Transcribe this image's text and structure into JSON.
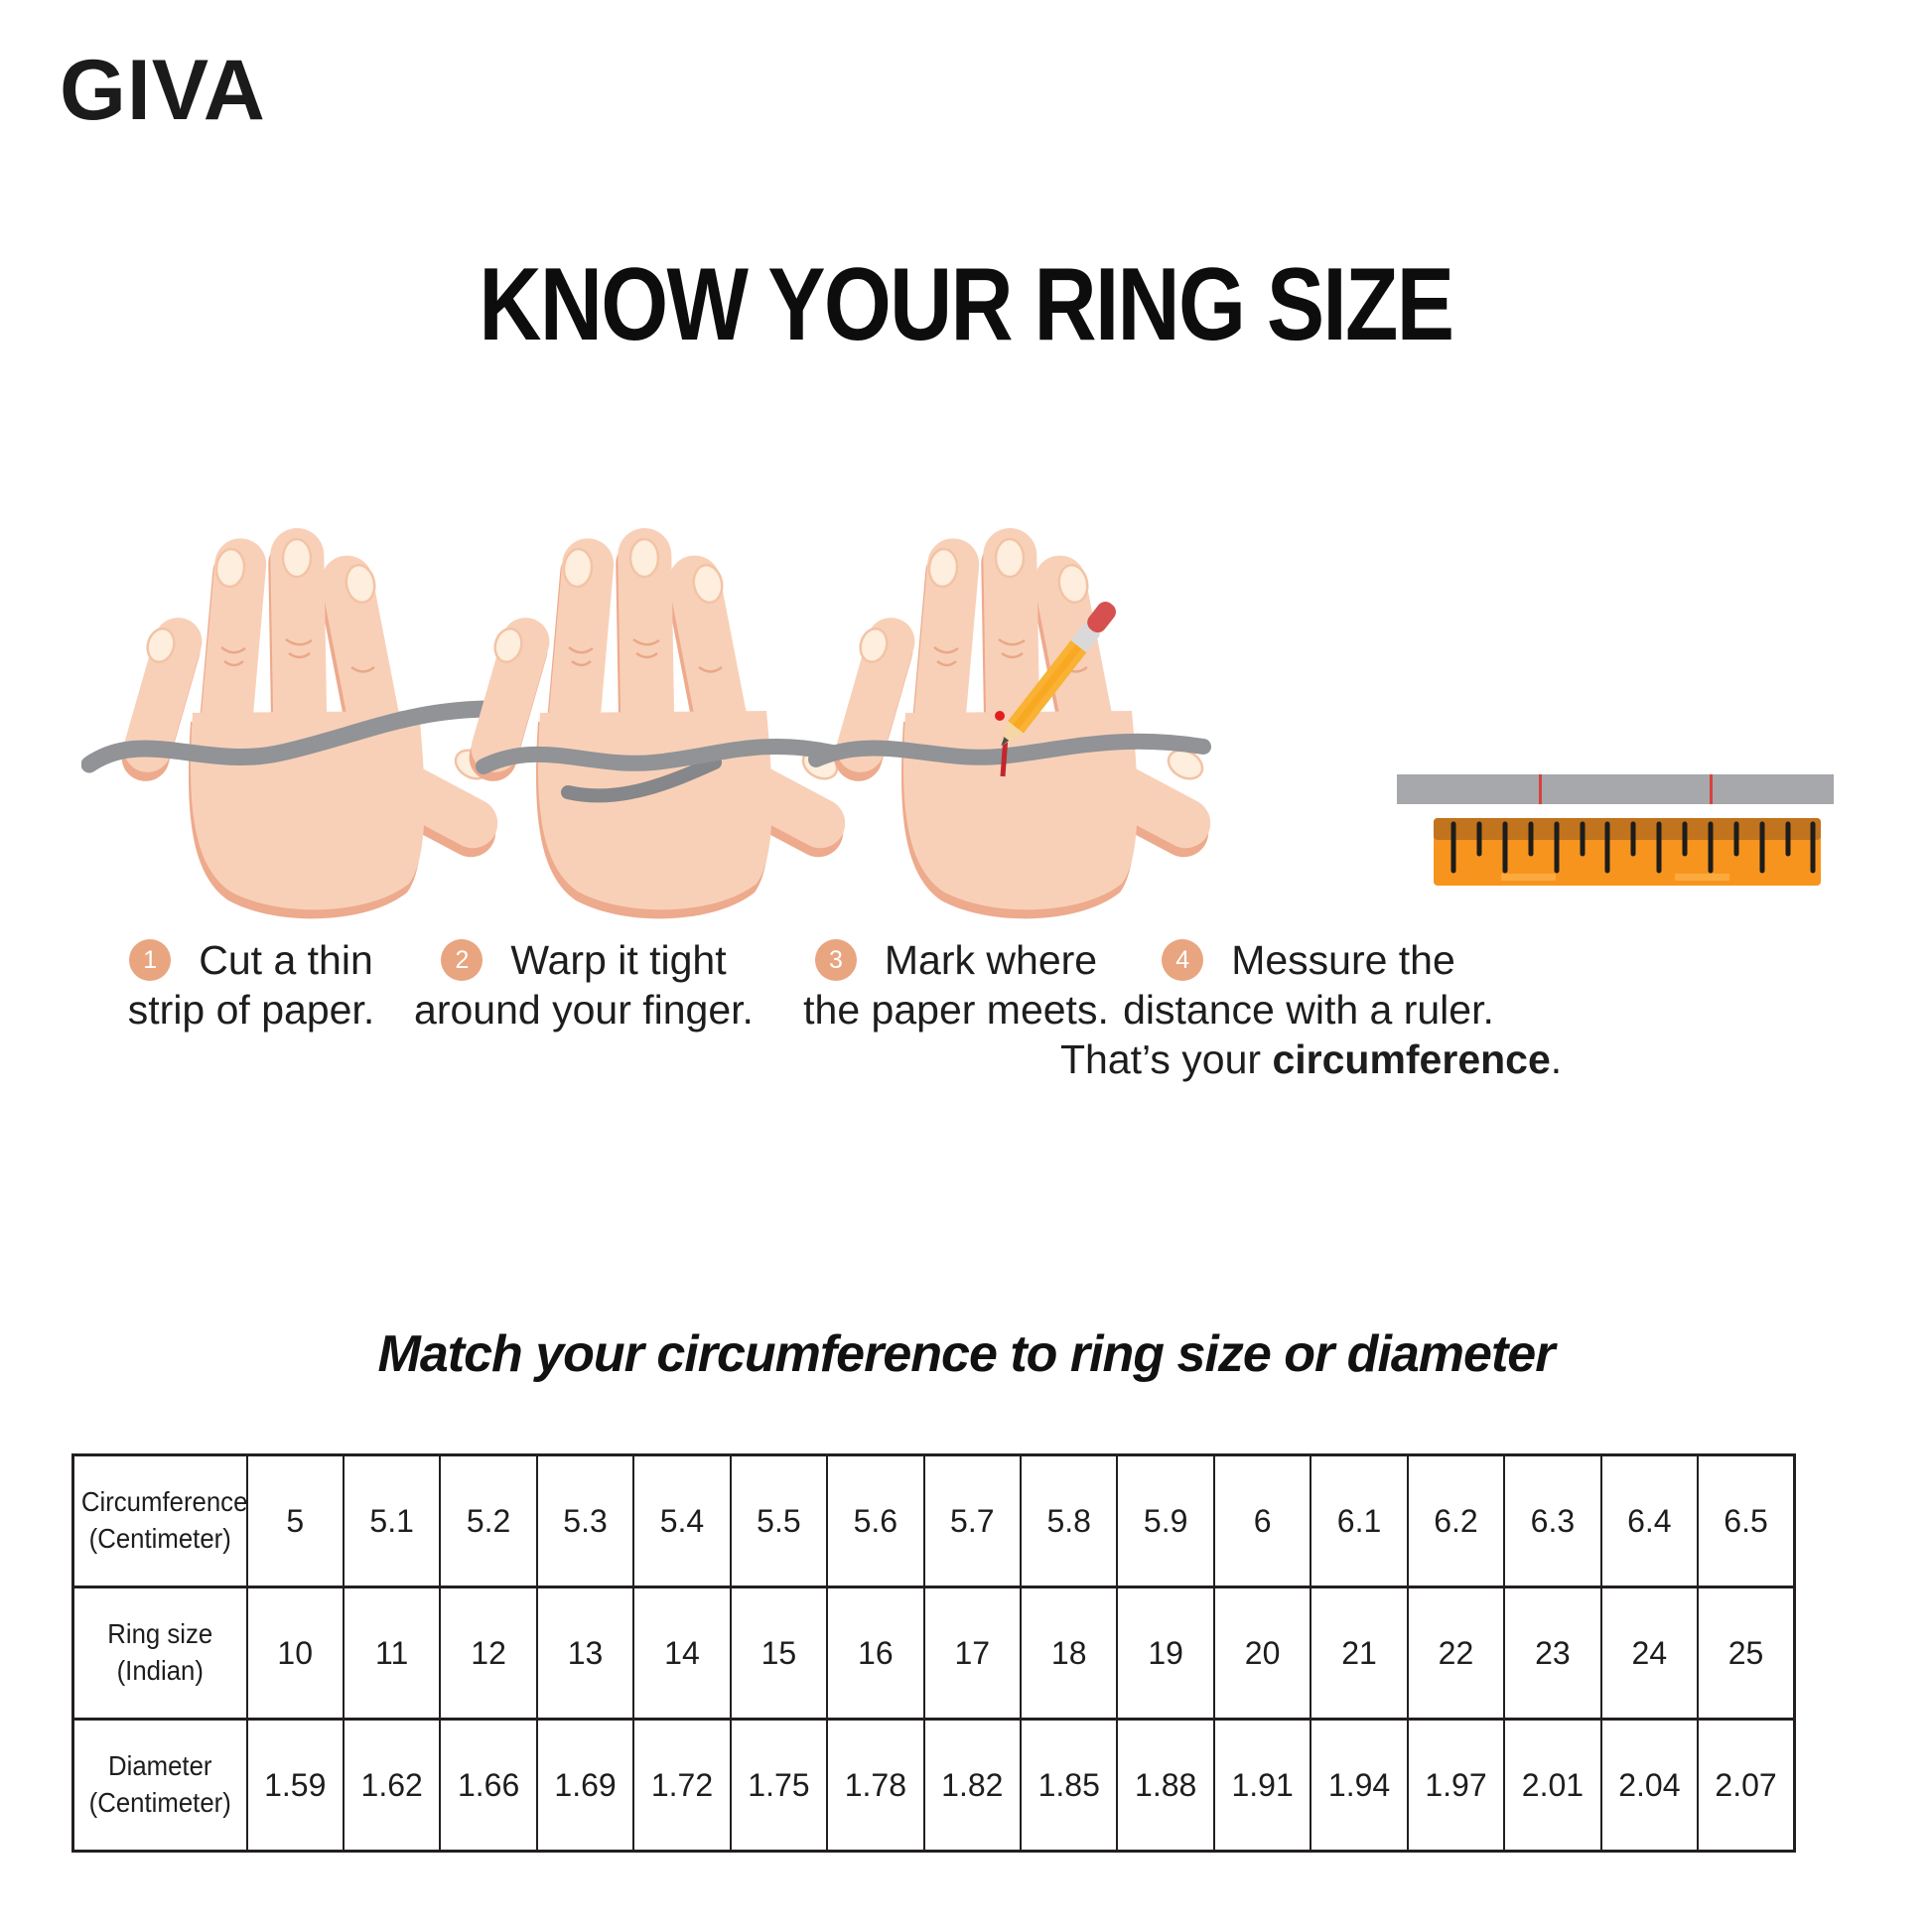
{
  "brand": "GIVA",
  "title": "KNOW YOUR RING SIZE",
  "steps": [
    {
      "num": "1",
      "line1": "Cut a thin",
      "line2": "strip of paper."
    },
    {
      "num": "2",
      "line1": "Warp it tight",
      "line2": "around your finger."
    },
    {
      "num": "3",
      "line1": "Mark where",
      "line2": "the paper meets."
    },
    {
      "num": "4",
      "line1": "Messure the",
      "line2": "distance with a ruler.",
      "line3_pre": "That’s your ",
      "line3_bold": "circumference",
      "line3_post": "."
    }
  ],
  "table_title": "Match your circumference to ring size or diameter",
  "chart_data": {
    "type": "table",
    "rows": [
      {
        "label_lines": [
          "Circumference",
          "(Centimeter)"
        ],
        "values": [
          "5",
          "5.1",
          "5.2",
          "5.3",
          "5.4",
          "5.5",
          "5.6",
          "5.7",
          "5.8",
          "5.9",
          "6",
          "6.1",
          "6.2",
          "6.3",
          "6.4",
          "6.5"
        ]
      },
      {
        "label_lines": [
          "Ring size",
          "(Indian)"
        ],
        "values": [
          "10",
          "11",
          "12",
          "13",
          "14",
          "15",
          "16",
          "17",
          "18",
          "19",
          "20",
          "21",
          "22",
          "23",
          "24",
          "25"
        ]
      },
      {
        "label_lines": [
          "Diameter",
          "(Centimeter)"
        ],
        "values": [
          "1.59",
          "1.62",
          "1.66",
          "1.69",
          "1.72",
          "1.75",
          "1.78",
          "1.82",
          "1.85",
          "1.88",
          "1.91",
          "1.94",
          "1.97",
          "2.01",
          "2.04",
          "2.07"
        ]
      }
    ]
  },
  "colors": {
    "badge": "#e8a580",
    "paper_strip_gray": "#919396",
    "mark_red": "#c1272d",
    "ruler_body_orange": "#f7941e",
    "ruler_band_orange": "#c2731d",
    "skin": "#f8d0b8",
    "skin_shade": "#edaa8c",
    "text": "#1d1d1d"
  }
}
